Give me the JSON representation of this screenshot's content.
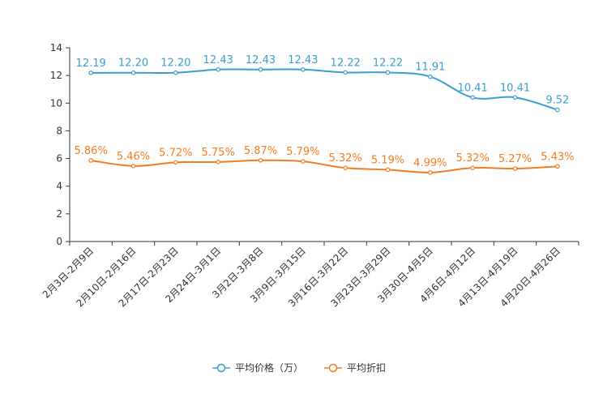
{
  "chart_data": {
    "type": "line",
    "categories": [
      "2月3日-2月9日",
      "2月10日-2月16日",
      "2月17日-2月23日",
      "2月24日-3月1日",
      "3月2日-3月8日",
      "3月9日-3月15日",
      "3月16日-3月22日",
      "3月23日-3月29日",
      "3月30日-4月5日",
      "4月6日-4月12日",
      "4月13日-4月19日",
      "4月20日-4月26日"
    ],
    "ylim": [
      0,
      14
    ],
    "yticks": [
      0,
      2,
      4,
      6,
      8,
      10,
      12,
      14
    ],
    "series": [
      {
        "name": "平均价格（万）",
        "color": "#3a9fcf",
        "values": [
          12.19,
          12.2,
          12.2,
          12.43,
          12.43,
          12.43,
          12.22,
          12.22,
          11.91,
          10.41,
          10.41,
          9.52
        ],
        "labels": [
          "12.19",
          "12.20",
          "12.20",
          "12.43",
          "12.43",
          "12.43",
          "12.22",
          "12.22",
          "11.91",
          "10.41",
          "10.41",
          "9.52"
        ]
      },
      {
        "name": "平均折扣",
        "color": "#f57c1f",
        "values": [
          5.86,
          5.46,
          5.72,
          5.75,
          5.87,
          5.79,
          5.32,
          5.19,
          4.99,
          5.32,
          5.27,
          5.43
        ],
        "labels": [
          "5.86%",
          "5.46%",
          "5.72%",
          "5.75%",
          "5.87%",
          "5.79%",
          "5.32%",
          "5.19%",
          "4.99%",
          "5.32%",
          "5.27%",
          "5.43%"
        ]
      }
    ],
    "legend": {
      "position": "bottom-center"
    }
  }
}
